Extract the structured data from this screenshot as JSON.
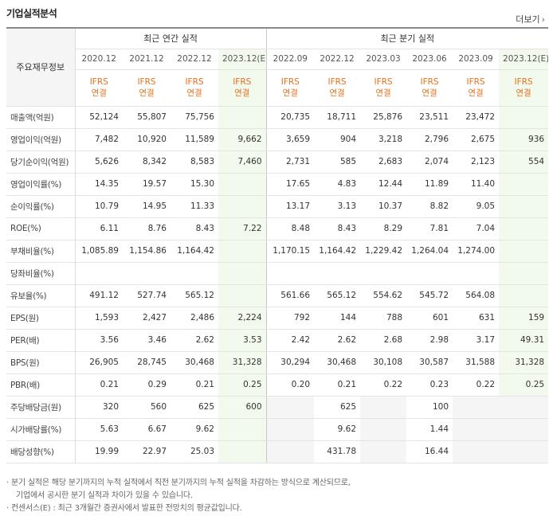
{
  "section_title": "기업실적분석",
  "more_label": "더보기",
  "header": {
    "row_label": "주요재무정보",
    "annual_group": "최근 연간 실적",
    "quarter_group": "최근 분기 실적",
    "annual_periods": [
      "2020.12",
      "2021.12",
      "2022.12",
      "2023.12(E)"
    ],
    "quarter_periods": [
      "2022.09",
      "2022.12",
      "2023.03",
      "2023.06",
      "2023.09",
      "2023.12(E)"
    ],
    "ifrs_top": "IFRS",
    "ifrs_bottom": "연결"
  },
  "rows": [
    {
      "label": "매출액(억원)",
      "annual": [
        "52,124",
        "55,807",
        "75,756",
        ""
      ],
      "quarter": [
        "20,735",
        "18,711",
        "25,876",
        "23,511",
        "23,472",
        ""
      ]
    },
    {
      "label": "영업이익(억원)",
      "annual": [
        "7,482",
        "10,920",
        "11,589",
        "9,662"
      ],
      "quarter": [
        "3,659",
        "904",
        "3,218",
        "2,796",
        "2,675",
        "936"
      ]
    },
    {
      "label": "당기순이익(억원)",
      "annual": [
        "5,626",
        "8,342",
        "8,583",
        "7,460"
      ],
      "quarter": [
        "2,731",
        "585",
        "2,683",
        "2,074",
        "2,123",
        "554"
      ]
    },
    {
      "label": "영업이익률(%)",
      "annual": [
        "14.35",
        "19.57",
        "15.30",
        ""
      ],
      "quarter": [
        "17.65",
        "4.83",
        "12.44",
        "11.89",
        "11.40",
        ""
      ]
    },
    {
      "label": "순이익률(%)",
      "annual": [
        "10.79",
        "14.95",
        "11.33",
        ""
      ],
      "quarter": [
        "13.17",
        "3.13",
        "10.37",
        "8.82",
        "9.05",
        ""
      ]
    },
    {
      "label": "ROE(%)",
      "annual": [
        "6.11",
        "8.76",
        "8.43",
        "7.22"
      ],
      "quarter": [
        "8.48",
        "8.43",
        "8.29",
        "7.81",
        "7.04",
        ""
      ]
    },
    {
      "label": "부채비율(%)",
      "annual": [
        "1,085.89",
        "1,154.86",
        "1,164.42",
        ""
      ],
      "quarter": [
        "1,170.15",
        "1,164.42",
        "1,229.42",
        "1,264.04",
        "1,274.00",
        ""
      ]
    },
    {
      "label": "당좌비율(%)",
      "annual": [
        "",
        "",
        "",
        ""
      ],
      "quarter": [
        "",
        "",
        "",
        "",
        "",
        ""
      ]
    },
    {
      "label": "유보율(%)",
      "annual": [
        "491.12",
        "527.74",
        "565.12",
        ""
      ],
      "quarter": [
        "561.66",
        "565.12",
        "554.62",
        "545.72",
        "564.08",
        ""
      ]
    },
    {
      "label": "EPS(원)",
      "annual": [
        "1,593",
        "2,427",
        "2,486",
        "2,224"
      ],
      "quarter": [
        "792",
        "144",
        "788",
        "601",
        "631",
        "159"
      ]
    },
    {
      "label": "PER(배)",
      "annual": [
        "3.56",
        "3.46",
        "2.62",
        "3.53"
      ],
      "quarter": [
        "2.42",
        "2.62",
        "2.68",
        "2.98",
        "3.17",
        "49.31"
      ]
    },
    {
      "label": "BPS(원)",
      "annual": [
        "26,905",
        "28,745",
        "30,468",
        "31,328"
      ],
      "quarter": [
        "30,294",
        "30,468",
        "30,108",
        "30,587",
        "31,588",
        "31,328"
      ]
    },
    {
      "label": "PBR(배)",
      "annual": [
        "0.21",
        "0.29",
        "0.21",
        "0.25"
      ],
      "quarter": [
        "0.20",
        "0.21",
        "0.22",
        "0.23",
        "0.22",
        "0.25"
      ]
    },
    {
      "label": "주당배당금(원)",
      "annual": [
        "320",
        "560",
        "625",
        "600"
      ],
      "quarter": [
        "",
        "625",
        "",
        "100",
        "",
        ""
      ]
    },
    {
      "label": "시가배당률(%)",
      "annual": [
        "5.63",
        "6.67",
        "9.62",
        ""
      ],
      "quarter": [
        "",
        "9.62",
        "",
        "1.44",
        "",
        ""
      ]
    },
    {
      "label": "배당성향(%)",
      "annual": [
        "19.99",
        "22.97",
        "25.03",
        ""
      ],
      "quarter": [
        "",
        "431.78",
        "",
        "16.44",
        "",
        ""
      ]
    }
  ],
  "notes": [
    "· 분기 실적은 해당 분기까지의 누적 실적에서 직전 분기까지의 누적 실적을 차감하는 방식으로 계산되므로,",
    "기업에서 공시한 분기 실적과 차이가 있을 수 있습니다.",
    "· 컨센서스(E) : 최근 3개월간 증권사에서 발표한 전망치의 평균값입니다."
  ]
}
